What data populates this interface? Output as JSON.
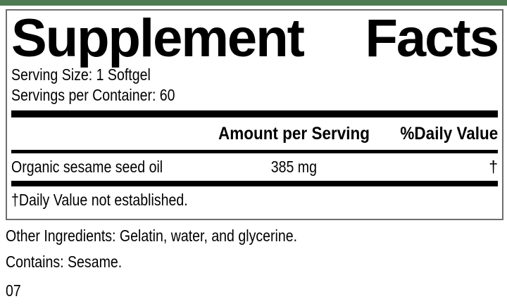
{
  "colors": {
    "accent_green": "#4e7b52",
    "rule_black": "#000000",
    "border_gray": "#6e6e6e"
  },
  "panel": {
    "title_words": [
      "Supplement",
      "Facts"
    ],
    "serving_size": "Serving Size: 1 Softgel",
    "servings_per_container": "Servings per Container: 60",
    "amount_header": "Amount per Serving",
    "daily_value_header": "%Daily Value",
    "rows": [
      {
        "name": "Organic sesame seed oil",
        "amount": "385 mg",
        "daily_value": "†"
      }
    ],
    "footnote": "†Daily Value not established."
  },
  "footer": {
    "other_ingredients": "Other Ingredients: Gelatin, water, and glycerine.",
    "contains": "Contains: Sesame.",
    "code": "07"
  }
}
